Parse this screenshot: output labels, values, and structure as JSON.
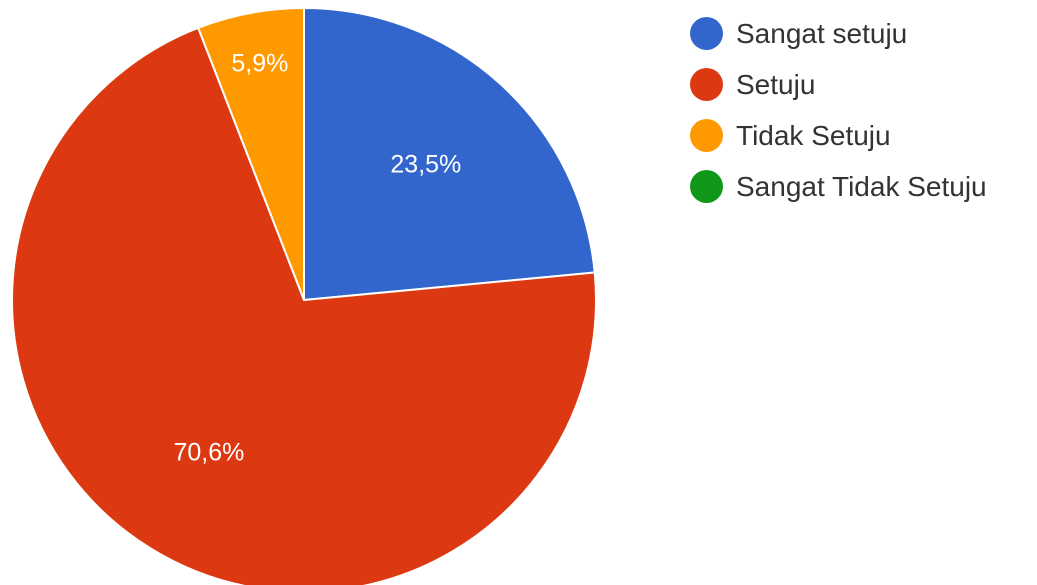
{
  "chart_data": {
    "type": "pie",
    "title": "",
    "legend_position": "right",
    "start_angle_deg": 90,
    "direction": "clockwise",
    "slices": [
      {
        "name": "Sangat setuju",
        "value": 23.5,
        "label": "23,5%",
        "color": "#3366cc"
      },
      {
        "name": "Setuju",
        "value": 70.6,
        "label": "70,6%",
        "color": "#dc3912"
      },
      {
        "name": "Tidak Setuju",
        "value": 5.9,
        "label": "5,9%",
        "color": "#ff9900"
      },
      {
        "name": "Sangat Tidak Setuju",
        "value": 0,
        "label": "",
        "color": "#109618"
      }
    ]
  }
}
